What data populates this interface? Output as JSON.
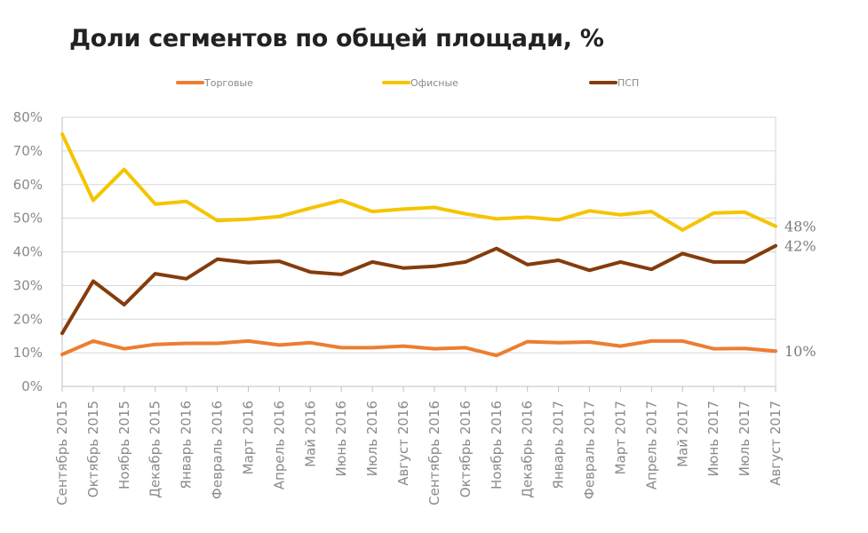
{
  "chart_data": {
    "type": "line",
    "title": "Доли сегментов по общей площади, %",
    "categories": [
      "Сентябрь 2015",
      "Октябрь 2015",
      "Ноябрь 2015",
      "Декабрь 2015",
      "Январь 2016",
      "Февраль 2016",
      "Март 2016",
      "Апрель 2016",
      "Май 2016",
      "Июнь 2016",
      "Июль 2016",
      "Август 2016",
      "Сентябрь 2016",
      "Октябрь 2016",
      "Ноябрь 2016",
      "Декабрь 2016",
      "Январь 2017",
      "Февраль 2017",
      "Март 2017",
      "Апрель 2017",
      "Май 2017",
      "Июнь 2017",
      "Июль 2017",
      "Август 2017"
    ],
    "y_ticks": [
      "0%",
      "10%",
      "20%",
      "30%",
      "40%",
      "50%",
      "60%",
      "70%",
      "80%"
    ],
    "ylim": [
      0,
      80
    ],
    "legend_position": "top",
    "series": [
      {
        "name": "Торговые",
        "color": "#ED7D31",
        "values": [
          9.5,
          13.5,
          11.2,
          12.5,
          12.8,
          12.8,
          13.5,
          12.3,
          13.0,
          11.5,
          11.5,
          12.0,
          11.2,
          11.5,
          9.2,
          13.3,
          13.0,
          13.2,
          12.0,
          13.5,
          13.5,
          11.2,
          11.3,
          10.5
        ],
        "end_label": "10%"
      },
      {
        "name": "Офисные",
        "color": "#F5C400",
        "values": [
          75.0,
          55.3,
          64.5,
          54.2,
          55.0,
          49.3,
          49.7,
          50.5,
          53.0,
          55.3,
          52.0,
          52.7,
          53.2,
          51.3,
          49.8,
          50.3,
          49.5,
          52.2,
          51.0,
          52.0,
          46.5,
          51.5,
          51.8,
          47.6
        ],
        "end_label": "48%"
      },
      {
        "name": "ПСП",
        "color": "#843C0C",
        "values": [
          15.8,
          31.3,
          24.3,
          33.5,
          32.0,
          37.8,
          36.8,
          37.2,
          34.0,
          33.3,
          37.0,
          35.2,
          35.7,
          37.0,
          41.0,
          36.2,
          37.5,
          34.5,
          37.0,
          34.8,
          39.5,
          37.0,
          37.0,
          41.8
        ],
        "end_label": "42%"
      }
    ]
  }
}
